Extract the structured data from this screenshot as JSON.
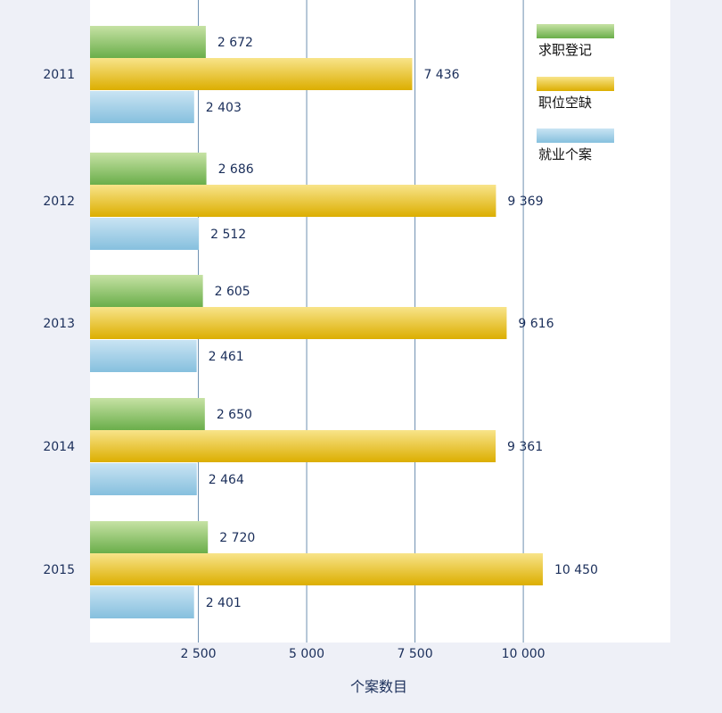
{
  "chart_data": {
    "type": "bar",
    "orientation": "horizontal",
    "categories": [
      "2011",
      "2012",
      "2013",
      "2014",
      "2015"
    ],
    "series": [
      {
        "name": "求职登记",
        "values": [
          2672,
          2686,
          2605,
          2650,
          2720
        ],
        "value_labels": [
          "2 672",
          "2 686",
          "2 605",
          "2 650",
          "2 720"
        ],
        "color": "#7ab956"
      },
      {
        "name": "职位空缺",
        "values": [
          7436,
          9369,
          9616,
          9361,
          10450
        ],
        "value_labels": [
          "7 436",
          "9 369",
          "9 616",
          "9 361",
          "10 450"
        ],
        "color": "#e8b800"
      },
      {
        "name": "就业个案",
        "values": [
          2403,
          2512,
          2461,
          2464,
          2401
        ],
        "value_labels": [
          "2 403",
          "2 512",
          "2 461",
          "2 464",
          "2 401"
        ],
        "color": "#93c8e4"
      }
    ],
    "xlabel": "个案数目",
    "ylabel": "",
    "xlim": [
      0,
      13500
    ],
    "xticks": [
      2500,
      5000,
      7500,
      10000
    ],
    "xtick_labels": [
      "2 500",
      "5 000",
      "7 500",
      "10  000"
    ],
    "grid": "vertical",
    "legend_position": "top-right",
    "colors": {
      "background": "#eef0f7",
      "plot_background": "#ffffff",
      "gridline": "#6d8fb0",
      "text": "#1a2e5a"
    }
  }
}
